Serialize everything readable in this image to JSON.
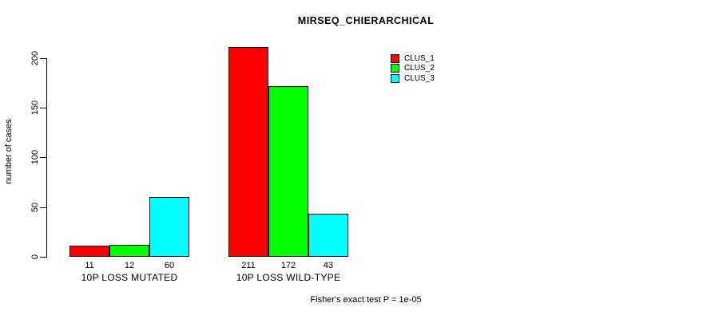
{
  "chart_data": {
    "type": "bar",
    "title": "MIRSEQ_CHIERARCHICAL",
    "ylabel": "number of cases",
    "xlabel": "",
    "subtitle": "Fisher's exact test P = 1e-05",
    "categories": [
      "10P LOSS MUTATED",
      "10P LOSS WILD-TYPE"
    ],
    "series": [
      {
        "name": "CLUS_1",
        "color": "#FF0000",
        "values": [
          11,
          211
        ]
      },
      {
        "name": "CLUS_2",
        "color": "#00FF00",
        "values": [
          12,
          172
        ]
      },
      {
        "name": "CLUS_3",
        "color": "#00FFFF",
        "values": [
          60,
          43
        ]
      }
    ],
    "bar_value_labels": [
      [
        "11",
        "12",
        "60"
      ],
      [
        "211",
        "172",
        "43"
      ]
    ],
    "yticks": [
      "0",
      "50",
      "100",
      "150",
      "200"
    ],
    "ylim": [
      0,
      211
    ],
    "grid": false,
    "legend_position": "top-right",
    "background_color": "#FFFFFF",
    "axis_color": "#000000",
    "text_color": "#000000"
  }
}
